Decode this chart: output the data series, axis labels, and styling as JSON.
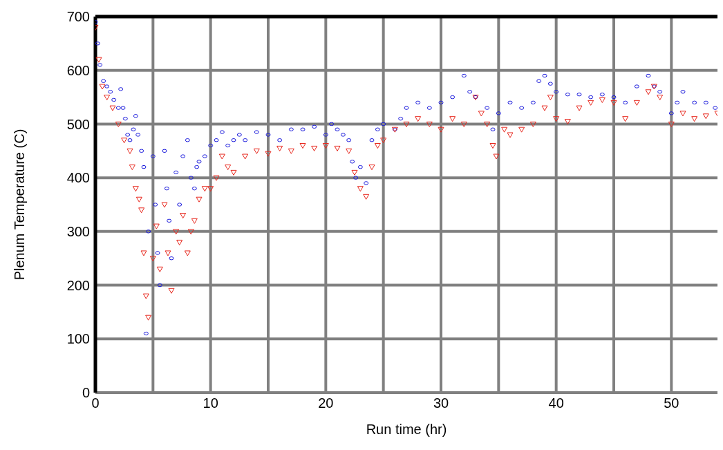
{
  "chart_data": {
    "type": "scatter",
    "xlabel": "Run time (hr)",
    "ylabel": "Plenum Temperature (C)",
    "xlim": [
      0,
      54
    ],
    "ylim": [
      0,
      700
    ],
    "xticks": [
      0,
      {
        "value": 5,
        "label": null
      },
      10,
      {
        "value": 15,
        "label": null
      },
      20,
      {
        "value": 25,
        "label": null
      },
      30,
      {
        "value": 35,
        "label": null
      },
      40,
      {
        "value": 45,
        "label": null
      },
      50
    ],
    "yticks": [
      0,
      100,
      200,
      300,
      400,
      500,
      600,
      700
    ],
    "grid": true,
    "legend": false,
    "series": [
      {
        "color": "#1a1adc",
        "marker": "circle",
        "x": [
          0,
          0.2,
          0.4,
          0.7,
          1,
          1.3,
          1.6,
          2,
          2.2,
          2.4,
          2.6,
          2.8,
          3,
          3.3,
          3.5,
          3.7,
          4,
          4.2,
          4.4,
          4.6,
          5,
          5.2,
          5.4,
          5.6,
          6,
          6.2,
          6.4,
          6.6,
          7,
          7.3,
          7.6,
          8,
          8.3,
          8.6,
          8.8,
          9,
          9.5,
          10,
          10.5,
          11,
          11.5,
          12,
          12.5,
          13,
          14,
          15,
          16,
          17,
          18,
          19,
          20,
          20.5,
          21,
          21.5,
          22,
          22.3,
          22.6,
          23,
          23.5,
          24,
          24.5,
          25,
          26,
          26.5,
          27,
          28,
          29,
          30,
          31,
          32,
          32.5,
          33,
          34,
          34.5,
          35,
          36,
          37,
          38,
          38.5,
          39,
          39.5,
          40,
          41,
          42,
          43,
          44,
          45,
          46,
          47,
          48,
          48.5,
          49,
          50,
          50.5,
          51,
          52,
          53,
          53.8
        ],
        "values": [
          690,
          650,
          610,
          580,
          570,
          560,
          545,
          530,
          565,
          530,
          510,
          480,
          470,
          490,
          515,
          480,
          450,
          420,
          110,
          300,
          440,
          350,
          260,
          200,
          450,
          380,
          320,
          250,
          410,
          350,
          440,
          470,
          400,
          380,
          420,
          430,
          440,
          460,
          470,
          485,
          460,
          470,
          480,
          470,
          485,
          480,
          470,
          490,
          490,
          495,
          480,
          500,
          490,
          480,
          470,
          430,
          400,
          420,
          390,
          470,
          490,
          500,
          490,
          510,
          530,
          540,
          530,
          540,
          550,
          590,
          560,
          550,
          530,
          490,
          520,
          540,
          530,
          540,
          580,
          590,
          575,
          560,
          555,
          555,
          550,
          555,
          550,
          540,
          570,
          590,
          570,
          560,
          520,
          540,
          560,
          540,
          540,
          530
        ]
      },
      {
        "color": "#e8281e",
        "marker": "triangle",
        "x": [
          0,
          0.3,
          0.6,
          1,
          1.5,
          2,
          2.5,
          3,
          3.2,
          3.5,
          3.8,
          4,
          4.2,
          4.4,
          4.6,
          5,
          5.3,
          5.6,
          6,
          6.3,
          6.6,
          7,
          7.3,
          7.6,
          8,
          8.3,
          8.6,
          9,
          9.5,
          10,
          10.5,
          11,
          11.5,
          12,
          13,
          14,
          15,
          16,
          17,
          18,
          19,
          20,
          21,
          22,
          22.5,
          23,
          23.5,
          24,
          24.5,
          25,
          26,
          27,
          28,
          29,
          30,
          31,
          32,
          33,
          33.5,
          34,
          34.5,
          34.8,
          35.5,
          36,
          37,
          38,
          39,
          39.5,
          40,
          41,
          42,
          43,
          44,
          45,
          46,
          47,
          48,
          48.5,
          49,
          50,
          51,
          52,
          53,
          54
        ],
        "values": [
          680,
          620,
          570,
          550,
          530,
          500,
          470,
          450,
          420,
          380,
          360,
          340,
          260,
          180,
          140,
          250,
          310,
          230,
          350,
          260,
          190,
          300,
          280,
          330,
          260,
          300,
          320,
          360,
          380,
          380,
          400,
          440,
          420,
          410,
          440,
          450,
          445,
          455,
          450,
          460,
          455,
          460,
          455,
          450,
          410,
          380,
          365,
          420,
          460,
          470,
          490,
          500,
          510,
          500,
          490,
          510,
          500,
          550,
          520,
          500,
          460,
          440,
          490,
          480,
          490,
          500,
          530,
          550,
          510,
          505,
          530,
          540,
          545,
          540,
          510,
          540,
          560,
          570,
          550,
          500,
          520,
          510,
          515,
          520
        ]
      }
    ]
  }
}
